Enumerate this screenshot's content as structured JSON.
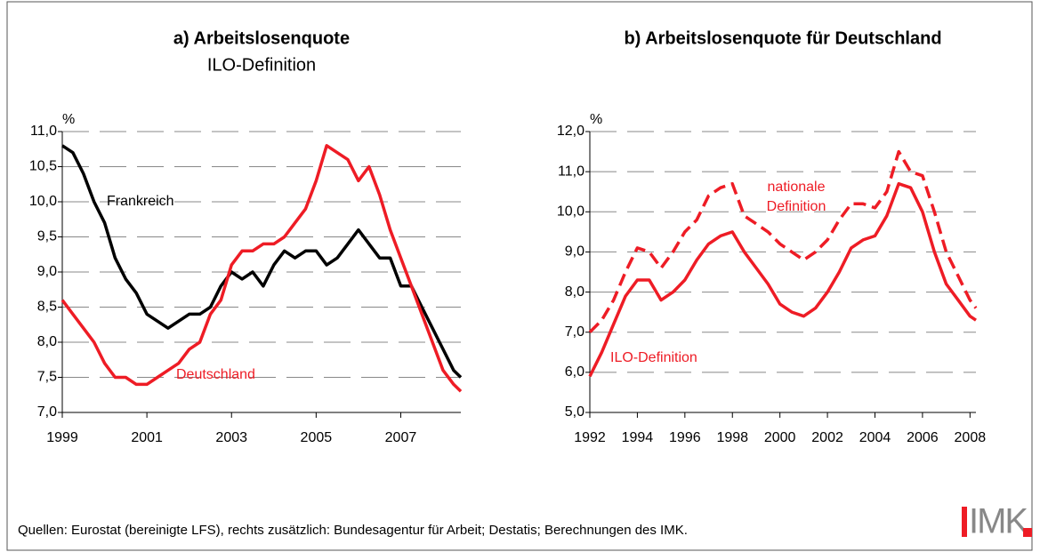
{
  "chart_data": [
    {
      "type": "line",
      "title": "a) Arbeitslosenquote",
      "subtitle": "ILO-Definition",
      "ylabel": "%",
      "x": [
        1999.0,
        1999.25,
        1999.5,
        1999.75,
        2000.0,
        2000.25,
        2000.5,
        2000.75,
        2001.0,
        2001.25,
        2001.5,
        2001.75,
        2002.0,
        2002.25,
        2002.5,
        2002.75,
        2003.0,
        2003.25,
        2003.5,
        2003.75,
        2004.0,
        2004.25,
        2004.5,
        2004.75,
        2005.0,
        2005.25,
        2005.5,
        2005.75,
        2006.0,
        2006.25,
        2006.5,
        2006.75,
        2007.0,
        2007.25,
        2007.5,
        2007.75,
        2008.0,
        2008.25,
        2008.42
      ],
      "series": [
        {
          "name": "Frankreich",
          "color": "#000000",
          "style": "solid",
          "values": [
            10.8,
            10.7,
            10.4,
            10.0,
            9.7,
            9.2,
            8.9,
            8.7,
            8.4,
            8.3,
            8.2,
            8.3,
            8.4,
            8.4,
            8.5,
            8.8,
            9.0,
            8.9,
            9.0,
            8.8,
            9.1,
            9.3,
            9.2,
            9.3,
            9.3,
            9.1,
            9.2,
            9.4,
            9.6,
            9.4,
            9.2,
            9.2,
            8.8,
            8.8,
            8.5,
            8.2,
            7.9,
            7.6,
            7.5
          ]
        },
        {
          "name": "Deutschland",
          "color": "#ee1c25",
          "style": "solid",
          "values": [
            8.6,
            8.4,
            8.2,
            8.0,
            7.7,
            7.5,
            7.5,
            7.4,
            7.4,
            7.5,
            7.6,
            7.7,
            7.9,
            8.0,
            8.4,
            8.6,
            9.1,
            9.3,
            9.3,
            9.4,
            9.4,
            9.5,
            9.7,
            9.9,
            10.3,
            10.8,
            10.7,
            10.6,
            10.3,
            10.5,
            10.1,
            9.6,
            9.2,
            8.8,
            8.4,
            8.0,
            7.6,
            7.4,
            7.3
          ]
        }
      ],
      "xlim": [
        1999,
        2008.42
      ],
      "xticks": [
        1999,
        2001,
        2003,
        2005,
        2007
      ],
      "ylim": [
        7,
        11
      ],
      "yticks": [
        {
          "value": 7,
          "label": "7,0"
        },
        {
          "value": 7.5,
          "label": "7,5"
        },
        {
          "value": 8,
          "label": "8,0"
        },
        {
          "value": 8.5,
          "label": "8,5"
        },
        {
          "value": 9,
          "label": "9,0"
        },
        {
          "value": 9.5,
          "label": "9,5"
        },
        {
          "value": 10,
          "label": "10,0"
        },
        {
          "value": 10.5,
          "label": "10,5"
        },
        {
          "value": 11,
          "label": "11,0"
        }
      ],
      "grid": true
    },
    {
      "type": "line",
      "title": "b) Arbeitslosenquote für Deutschland",
      "ylabel": "%",
      "x": [
        1992.0,
        1992.5,
        1993.0,
        1993.5,
        1994.0,
        1994.5,
        1995.0,
        1995.5,
        1996.0,
        1996.5,
        1997.0,
        1997.5,
        1998.0,
        1998.5,
        1999.0,
        1999.5,
        2000.0,
        2000.5,
        2001.0,
        2001.5,
        2002.0,
        2002.5,
        2003.0,
        2003.5,
        2004.0,
        2004.5,
        2005.0,
        2005.5,
        2006.0,
        2006.5,
        2007.0,
        2007.5,
        2008.0,
        2008.25
      ],
      "series": [
        {
          "name": "nationale Definition",
          "color": "#ee1c25",
          "style": "dashed",
          "values": [
            7.0,
            7.3,
            7.8,
            8.5,
            9.1,
            9.0,
            8.6,
            9.0,
            9.5,
            9.8,
            10.4,
            10.6,
            10.7,
            9.9,
            9.7,
            9.5,
            9.2,
            9.0,
            8.8,
            9.0,
            9.3,
            9.8,
            10.2,
            10.2,
            10.1,
            10.5,
            11.5,
            11.0,
            10.9,
            10.0,
            9.0,
            8.4,
            7.8,
            7.6
          ]
        },
        {
          "name": "ILO-Definition",
          "color": "#ee1c25",
          "style": "solid",
          "values": [
            5.9,
            6.5,
            7.2,
            7.9,
            8.3,
            8.3,
            7.8,
            8.0,
            8.3,
            8.8,
            9.2,
            9.4,
            9.5,
            9.0,
            8.6,
            8.2,
            7.7,
            7.5,
            7.4,
            7.6,
            8.0,
            8.5,
            9.1,
            9.3,
            9.4,
            9.9,
            10.7,
            10.6,
            10.0,
            9.0,
            8.2,
            7.8,
            7.4,
            7.3
          ]
        }
      ],
      "xlim": [
        1992,
        2008.25
      ],
      "xticks": [
        1992,
        1994,
        1996,
        1998,
        2000,
        2002,
        2004,
        2006,
        2008
      ],
      "ylim": [
        5,
        12
      ],
      "yticks": [
        {
          "value": 5,
          "label": "5,0"
        },
        {
          "value": 6,
          "label": "6,0"
        },
        {
          "value": 7,
          "label": "7,0"
        },
        {
          "value": 8,
          "label": "8,0"
        },
        {
          "value": 9,
          "label": "9,0"
        },
        {
          "value": 10,
          "label": "10,0"
        },
        {
          "value": 11,
          "label": "11,0"
        },
        {
          "value": 12,
          "label": "12,0"
        }
      ],
      "grid": true
    }
  ],
  "source": "Quellen: Eurostat (bereinigte LFS), rechts zusätzlich: Bundesagentur für Arbeit; Destatis; Berechnungen des IMK.",
  "logo": "IMK"
}
